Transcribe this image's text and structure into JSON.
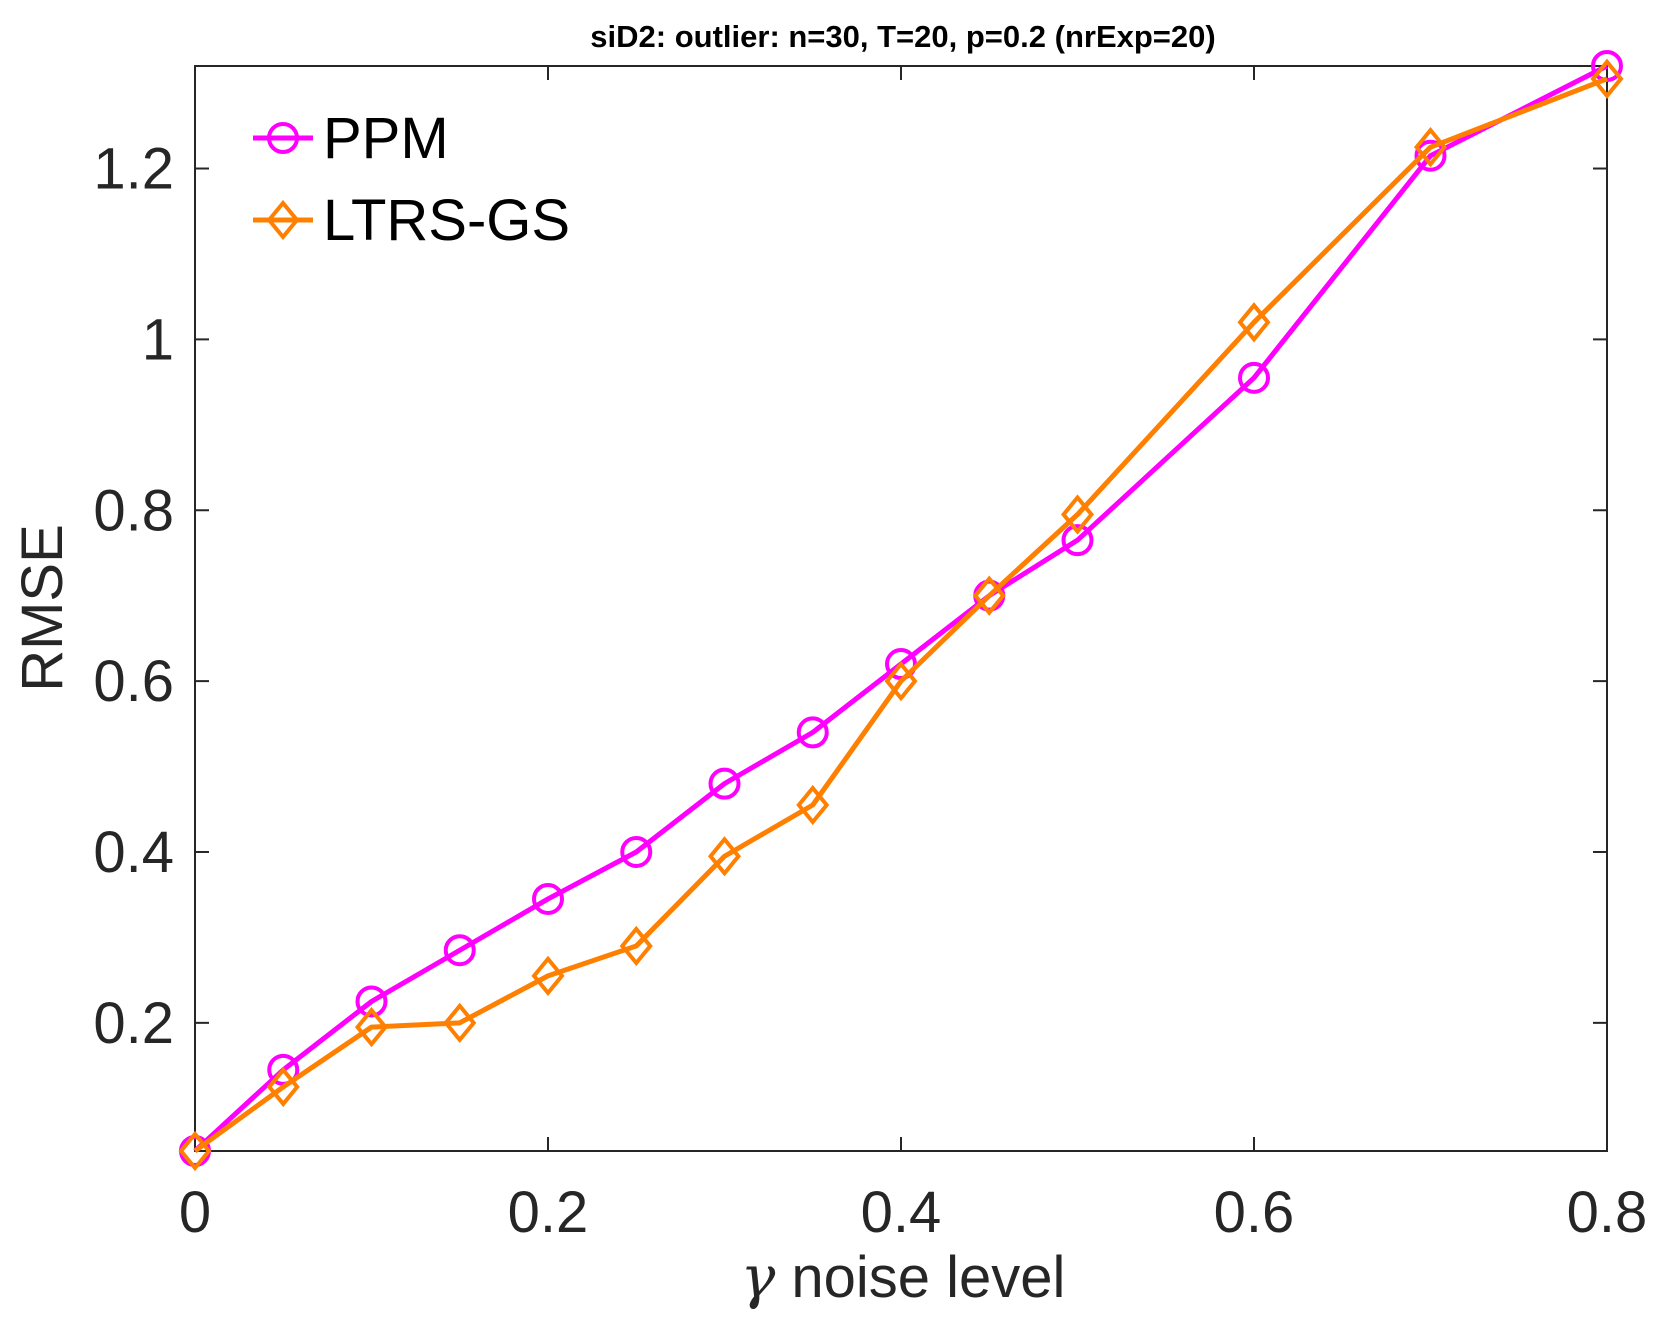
{
  "chart_data": {
    "type": "line",
    "title": "siD2: outlier: n=30, T=20, p=0.2 (nrExp=20)",
    "xlabel_symbol": "γ",
    "xlabel_text": "noise level",
    "ylabel": "RMSE",
    "xlim": [
      0,
      0.8
    ],
    "ylim": [
      0.05,
      1.32
    ],
    "xticks": [
      0,
      0.2,
      0.4,
      0.6,
      0.8
    ],
    "xtick_labels": [
      "0",
      "0.2",
      "0.4",
      "0.6",
      "0.8"
    ],
    "yticks": [
      0.2,
      0.4,
      0.6,
      0.8,
      1,
      1.2
    ],
    "ytick_labels": [
      "0.2",
      "0.4",
      "0.6",
      "0.8",
      "1",
      "1.2"
    ],
    "grid": false,
    "legend_position": "top-left",
    "x": [
      0,
      0.05,
      0.1,
      0.15,
      0.2,
      0.25,
      0.3,
      0.35,
      0.4,
      0.45,
      0.5,
      0.6,
      0.7,
      0.8
    ],
    "series": [
      {
        "name": "PPM",
        "color": "#ff00ff",
        "marker": "circle",
        "values": [
          0.05,
          0.145,
          0.225,
          0.285,
          0.345,
          0.4,
          0.48,
          0.54,
          0.62,
          0.7,
          0.765,
          0.955,
          1.215,
          1.32
        ]
      },
      {
        "name": "LTRS-GS",
        "color": "#ff8000",
        "marker": "diamond",
        "values": [
          0.05,
          0.125,
          0.195,
          0.2,
          0.255,
          0.29,
          0.395,
          0.455,
          0.6,
          0.7,
          0.795,
          1.02,
          1.225,
          1.305
        ]
      }
    ]
  }
}
